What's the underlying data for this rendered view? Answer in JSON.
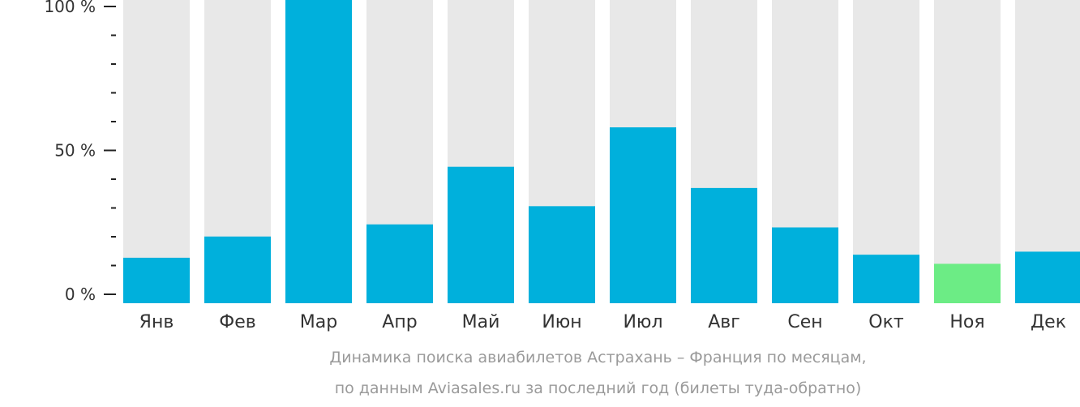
{
  "chart_data": {
    "type": "bar",
    "categories": [
      "Янв",
      "Фев",
      "Мар",
      "Апр",
      "Май",
      "Июн",
      "Июл",
      "Авг",
      "Сен",
      "Окт",
      "Ноя",
      "Дек"
    ],
    "values": [
      15,
      22,
      100,
      26,
      45,
      32,
      58,
      38,
      25,
      16,
      13,
      17
    ],
    "highlight_index": 10,
    "ylim": [
      0,
      100
    ],
    "yticks": [
      {
        "value": 0,
        "label": "0 %"
      },
      {
        "value": 50,
        "label": "50 %"
      },
      {
        "value": 100,
        "label": "100 %"
      }
    ],
    "minor_tick_step": 10,
    "colors": {
      "bar": "#00b0dc",
      "highlight": "#6cec85",
      "background": "#e8e8e8",
      "axis": "#222222"
    },
    "xlabel": "",
    "ylabel": ""
  },
  "caption": {
    "line1": "Динамика поиска авиабилетов Астрахань – Франция по месяцам,",
    "line2": "по данным Aviasales.ru за последний год (билеты туда-обратно)"
  }
}
